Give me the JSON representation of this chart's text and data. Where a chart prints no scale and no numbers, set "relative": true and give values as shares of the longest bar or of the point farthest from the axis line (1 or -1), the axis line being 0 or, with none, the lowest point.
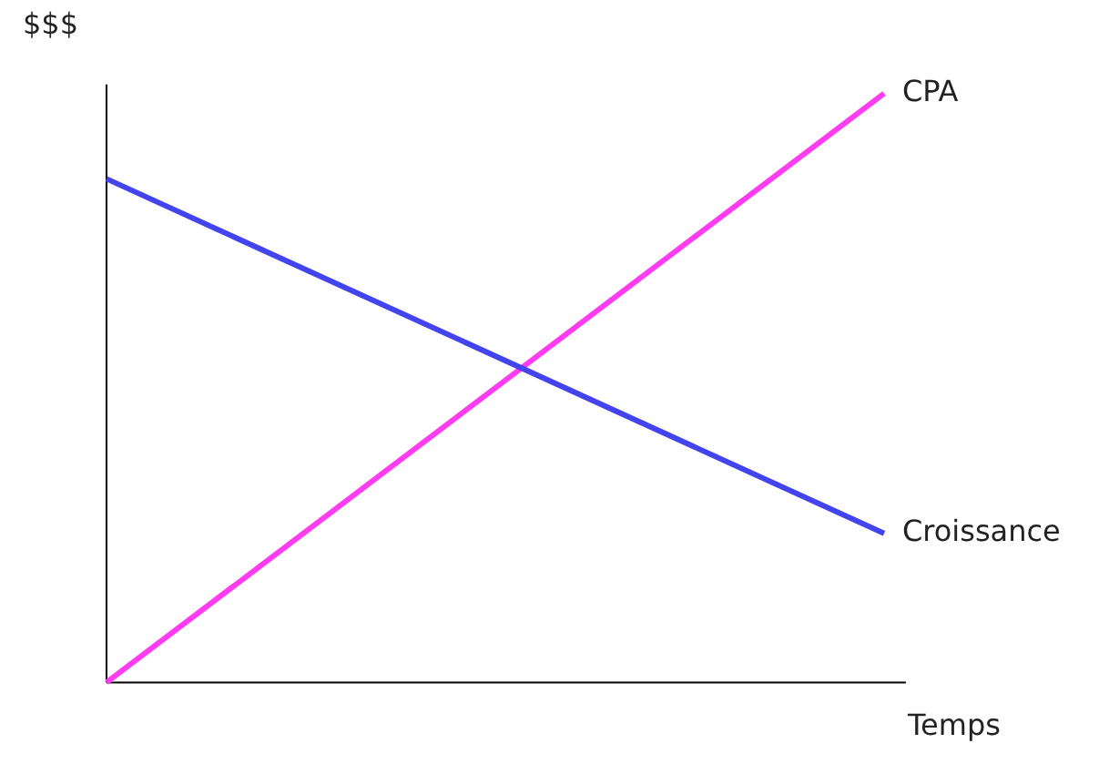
{
  "chart_data": {
    "type": "line",
    "relative": true,
    "xlabel": "Temps",
    "ylabel": "$$$",
    "categories": [
      null,
      null
    ],
    "legend": false,
    "grid": false,
    "series": [
      {
        "name": "CPA",
        "color": "#ff3cf0",
        "values": [
          0,
          1
        ]
      },
      {
        "name": "Croissance",
        "color": "#4444ee",
        "values": [
          0.855,
          0.253
        ]
      }
    ]
  }
}
